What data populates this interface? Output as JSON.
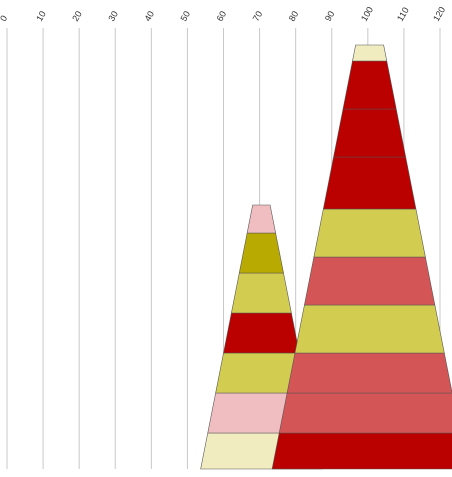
{
  "chart_data": {
    "type": "bar",
    "subtype": "stacked-cone",
    "title": "",
    "xlabel": "",
    "ylabel": "",
    "orientation": "vertical",
    "x_axis": {
      "position": "top",
      "ticks": [
        0,
        10,
        20,
        30,
        40,
        50,
        60,
        70,
        80,
        90,
        100,
        110,
        120
      ],
      "tick_labels": [
        "0",
        "10",
        "20",
        "30",
        "40",
        "50",
        "60",
        "70",
        "80",
        "90",
        "100",
        "110",
        "120"
      ],
      "range": [
        0,
        120
      ],
      "grid": true,
      "tick_label_rotation": -60
    },
    "colors": {
      "cream": "#f0ecc0",
      "pink": "#f0bec0",
      "red": "#bb0000",
      "yellow": "#d2cc50",
      "olive": "#b8aa00",
      "coral": "#d45555"
    },
    "cones": [
      {
        "center": 70.5,
        "segments": [
          {
            "value": 9,
            "color": "#f0ecc0"
          },
          {
            "value": 10,
            "color": "#f0bec0"
          },
          {
            "value": 10,
            "color": "#d2cc50"
          },
          {
            "value": 10,
            "color": "#bb0000"
          },
          {
            "value": 10,
            "color": "#d2cc50"
          },
          {
            "value": 10,
            "color": "#b8aa00"
          },
          {
            "value": 7,
            "color": "#f0bec0"
          }
        ]
      },
      {
        "center": 100.5,
        "segments": [
          {
            "value": 9,
            "color": "#bb0000"
          },
          {
            "value": 10,
            "color": "#d45555"
          },
          {
            "value": 10,
            "color": "#d45555"
          },
          {
            "value": 12,
            "color": "#d2cc50"
          },
          {
            "value": 12,
            "color": "#d45555"
          },
          {
            "value": 12,
            "color": "#d2cc50"
          },
          {
            "value": 13,
            "color": "#bb0000"
          },
          {
            "value": 12,
            "color": "#bb0000"
          },
          {
            "value": 12,
            "color": "#bb0000"
          },
          {
            "value": 4,
            "color": "#f0ecc0"
          }
        ]
      }
    ]
  }
}
